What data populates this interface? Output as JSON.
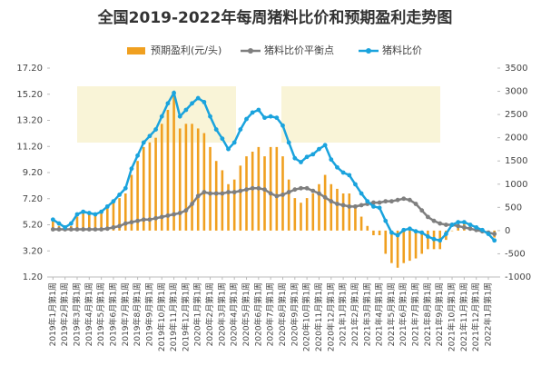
{
  "chart_data": {
    "type": "bar-line-combo",
    "title": "全国2019-2022年每周猪料比价和预期盈利走势图",
    "categories": [
      "2019年1月第1周",
      null,
      "2019年2月第1周",
      null,
      "2019年3月第1周",
      null,
      "2019年4月第1周",
      null,
      "2019年5月第1周",
      null,
      "2019年6月第1周",
      null,
      "2019年7月第1周",
      null,
      "2019年8月第1周",
      null,
      "2019年9月第1周",
      null,
      "2019年10月第1周",
      null,
      "2019年11月第1周",
      null,
      "2019年12月第1周",
      null,
      "2020年1月第1周",
      null,
      "2020年2月第1周",
      null,
      "2020年3月第1周",
      null,
      "2020年4月第1周",
      null,
      "2020年5月第1周",
      null,
      "2020年6月第1周",
      null,
      "2020年7月第1周",
      null,
      "2020年8月第1周",
      null,
      "2020年9月第1周",
      null,
      "2020年10月第1周",
      null,
      "2020年11月第1周",
      null,
      "2020年12月第1周",
      null,
      "2021年1月第1周",
      null,
      "2021年2月第1周",
      null,
      "2021年3月第1周",
      null,
      "2021年4月第1周",
      null,
      "2021年5月第1周",
      null,
      "2021年6月第1周",
      null,
      "2021年7月第1周",
      null,
      "2021年8月第1周",
      null,
      "2021年9月第1周",
      null,
      "2021年10月第1周",
      null,
      "2021年11月第1周",
      null,
      "2021年12月第1周",
      null,
      "2022年1月第1周",
      null
    ],
    "series": [
      {
        "name": "预期盈利(元/头)",
        "kind": "bar",
        "axis": "y2",
        "color": "#f0a020",
        "values": [
          200,
          100,
          0,
          100,
          300,
          400,
          400,
          350,
          400,
          500,
          600,
          700,
          800,
          1200,
          1500,
          1800,
          1900,
          2000,
          2300,
          2600,
          2900,
          2200,
          2300,
          2300,
          2200,
          2100,
          1800,
          1500,
          1300,
          1000,
          1100,
          1400,
          1600,
          1700,
          1800,
          1600,
          1800,
          1800,
          1600,
          1100,
          700,
          600,
          700,
          800,
          1000,
          1200,
          1000,
          900,
          800,
          800,
          500,
          300,
          100,
          -100,
          -100,
          -500,
          -700,
          -800,
          -700,
          -650,
          -600,
          -500,
          -400,
          -400,
          -400,
          -200,
          0,
          100,
          150,
          100,
          50,
          0,
          -50,
          -150
        ]
      },
      {
        "name": "猪料比价平衡点",
        "kind": "line",
        "color": "#7f7f7f",
        "values": [
          4.85,
          4.85,
          4.85,
          4.85,
          4.85,
          4.85,
          4.85,
          4.85,
          4.85,
          4.9,
          5.0,
          5.1,
          5.3,
          5.4,
          5.5,
          5.6,
          5.6,
          5.7,
          5.8,
          5.9,
          6.0,
          6.1,
          6.3,
          6.8,
          7.4,
          7.7,
          7.6,
          7.6,
          7.6,
          7.7,
          7.7,
          7.8,
          7.9,
          8.0,
          8.0,
          7.9,
          7.6,
          7.4,
          7.5,
          7.7,
          7.9,
          8.0,
          8.0,
          7.8,
          7.6,
          7.3,
          7.0,
          6.8,
          6.7,
          6.6,
          6.6,
          6.7,
          6.8,
          6.9,
          6.9,
          7.0,
          7.0,
          7.1,
          7.2,
          7.1,
          6.8,
          6.3,
          5.8,
          5.5,
          5.3,
          5.2,
          5.2,
          5.1,
          5.0,
          4.9,
          4.8,
          4.7,
          4.6,
          4.5
        ]
      },
      {
        "name": "猪料比价",
        "kind": "line",
        "color": "#1aa3dd",
        "values": [
          5.6,
          5.3,
          5.0,
          5.3,
          6.0,
          6.2,
          6.1,
          6.0,
          6.2,
          6.6,
          7.0,
          7.5,
          8.0,
          9.5,
          10.5,
          11.5,
          12.0,
          12.5,
          13.5,
          14.5,
          15.3,
          13.5,
          14.0,
          14.5,
          14.9,
          14.6,
          13.5,
          12.5,
          11.8,
          11.0,
          11.5,
          12.5,
          13.3,
          13.8,
          14.0,
          13.4,
          13.5,
          13.4,
          12.8,
          11.5,
          10.3,
          10.0,
          10.4,
          10.6,
          11.0,
          11.3,
          10.2,
          9.6,
          9.2,
          9.0,
          8.3,
          7.6,
          7.0,
          6.6,
          6.5,
          5.5,
          4.6,
          4.4,
          4.8,
          4.9,
          4.7,
          4.6,
          4.3,
          4.1,
          4.0,
          4.5,
          5.2,
          5.4,
          5.4,
          5.2,
          5.0,
          4.8,
          4.5,
          4.0
        ]
      }
    ],
    "ylim": [
      1.2,
      17.2
    ],
    "yticks": [
      {
        "value": 1.2,
        "label": "1.20"
      },
      {
        "value": 3.2,
        "label": "3.20"
      },
      {
        "value": 5.2,
        "label": "5.20"
      },
      {
        "value": 7.2,
        "label": "7.20"
      },
      {
        "value": 9.2,
        "label": "9.20"
      },
      {
        "value": 11.2,
        "label": "11.20"
      },
      {
        "value": 13.2,
        "label": "13.20"
      },
      {
        "value": 15.2,
        "label": "15.20"
      },
      {
        "value": 17.2,
        "label": "17.20"
      }
    ],
    "y2lim": [
      -1000,
      3500
    ],
    "y2ticks": [
      -1000,
      -500,
      0,
      500,
      1000,
      1500,
      2000,
      2500,
      3000,
      3500
    ],
    "legend": "top"
  }
}
